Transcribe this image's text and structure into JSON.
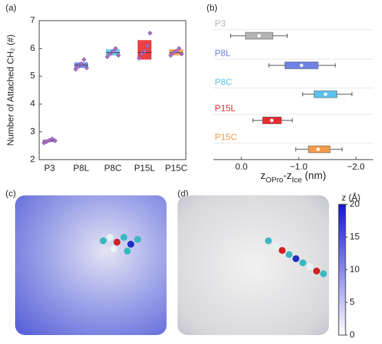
{
  "chart_data": [
    {
      "type": "box",
      "panel": "(a)",
      "ylabel": "Number of Attached CH₂ (#)",
      "categories": [
        "P3",
        "P8L",
        "P8C",
        "P15L",
        "P15C"
      ],
      "ylim": [
        2,
        7
      ],
      "yticks": [
        2,
        3,
        4,
        5,
        6,
        7
      ],
      "series": [
        {
          "colors": [
            "#b9a8d8",
            "#6f82e6",
            "#5cc3ee",
            "#ea2b2f",
            "#f49a4c"
          ],
          "q1": [
            2.62,
            5.3,
            5.75,
            5.6,
            5.75
          ],
          "median": [
            2.67,
            5.4,
            5.85,
            5.85,
            5.85
          ],
          "q3": [
            2.73,
            5.5,
            5.97,
            6.3,
            5.97
          ],
          "points": [
            [
              2.6,
              2.65,
              2.7,
              2.75,
              2.68
            ],
            [
              5.25,
              5.35,
              5.45,
              5.6,
              5.3
            ],
            [
              5.7,
              5.8,
              5.9,
              6.0,
              5.75
            ],
            [
              5.65,
              5.8,
              5.9,
              6.1,
              6.55
            ],
            [
              5.75,
              5.85,
              5.9,
              6.0,
              5.8
            ]
          ]
        }
      ]
    },
    {
      "type": "hbox",
      "panel": "(b)",
      "xlabel_parts": [
        "z",
        "OPro",
        "-z",
        "Ice",
        " (nm)"
      ],
      "categories": [
        "P3",
        "P8L",
        "P8C",
        "P15L",
        "P15C"
      ],
      "colors": [
        "#b4b4b4",
        "#6f82e6",
        "#5cc3ee",
        "#ea2b2f",
        "#f49a4c"
      ],
      "xlim": [
        0.49,
        -2.3
      ],
      "xticks": [
        {
          "value": 0,
          "label": "0.0"
        },
        {
          "value": -1,
          "label": "−1.0"
        },
        {
          "value": -2,
          "label": "−2.0"
        }
      ],
      "whisker_low": [
        0.19,
        -0.48,
        -1.07,
        -0.2,
        -0.95
      ],
      "q1": [
        -0.07,
        -0.76,
        -1.27,
        -0.37,
        -1.17
      ],
      "mean": [
        -0.31,
        -1.05,
        -1.47,
        -0.53,
        -1.34
      ],
      "q3": [
        -0.55,
        -1.34,
        -1.67,
        -0.7,
        -1.55
      ],
      "whisker_high": [
        -0.8,
        -1.64,
        -1.93,
        -0.89,
        -1.76
      ]
    },
    {
      "type": "colorbar",
      "panels": [
        "(c)",
        "(d)"
      ],
      "label": "z (Å)",
      "ylim": [
        0,
        20
      ],
      "yticks": [
        0,
        5,
        10,
        15,
        20
      ],
      "colors": [
        "#ffffff",
        "#1414d8"
      ]
    }
  ]
}
